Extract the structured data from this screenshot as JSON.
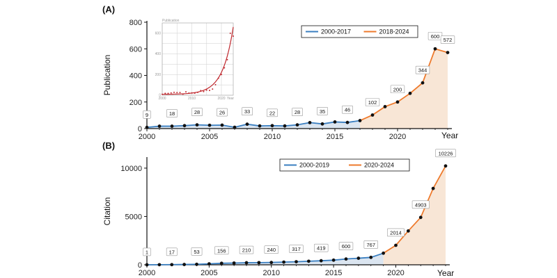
{
  "chart_data": [
    {
      "panel_label": "(A)",
      "type": "line",
      "ylabel": "Publication",
      "xlabel": "Year",
      "xlim": [
        2000,
        2024
      ],
      "ylim": [
        0,
        800
      ],
      "x_ticks": [
        2000,
        2005,
        2010,
        2015,
        2020
      ],
      "y_ticks": [
        0,
        200,
        400,
        600,
        800
      ],
      "legend_position": "top-right",
      "series": [
        {
          "name": "2000-2017",
          "color": "#3a7fc1",
          "fill": "#dbe5f0",
          "x": [
            2000,
            2001,
            2002,
            2003,
            2004,
            2005,
            2006,
            2007,
            2008,
            2009,
            2010,
            2011,
            2012,
            2013,
            2014,
            2015,
            2016,
            2017
          ],
          "values": [
            9,
            18,
            18,
            22,
            28,
            25,
            26,
            10,
            33,
            20,
            22,
            20,
            28,
            45,
            35,
            50,
            46,
            60
          ]
        },
        {
          "name": "2018-2024",
          "color": "#ee7a2c",
          "fill": "#f8e6d6",
          "x": [
            2017,
            2018,
            2019,
            2020,
            2021,
            2022,
            2023,
            2024
          ],
          "values": [
            60,
            102,
            165,
            200,
            265,
            344,
            600,
            572
          ]
        }
      ],
      "data_labels": [
        {
          "x": 2000,
          "text": "9"
        },
        {
          "x": 2002,
          "text": "18"
        },
        {
          "x": 2004,
          "text": "28"
        },
        {
          "x": 2006,
          "text": "26"
        },
        {
          "x": 2008,
          "text": "33"
        },
        {
          "x": 2010,
          "text": "22"
        },
        {
          "x": 2012,
          "text": "28"
        },
        {
          "x": 2014,
          "text": "35"
        },
        {
          "x": 2016,
          "text": "46"
        },
        {
          "x": 2018,
          "text": "102"
        },
        {
          "x": 2020,
          "text": "200"
        },
        {
          "x": 2022,
          "text": "344"
        },
        {
          "x": 2023,
          "text": "600"
        },
        {
          "x": 2024,
          "text": "572"
        }
      ],
      "inset": {
        "ylabel": "Publication",
        "xlabel": "Year",
        "y_ticks": [
          0,
          200,
          400,
          600
        ],
        "x_ticks": [
          2000,
          2010,
          2020
        ],
        "points": [
          [
            2000,
            9
          ],
          [
            2001,
            18
          ],
          [
            2002,
            18
          ],
          [
            2003,
            22
          ],
          [
            2004,
            28
          ],
          [
            2005,
            25
          ],
          [
            2006,
            26
          ],
          [
            2007,
            10
          ],
          [
            2008,
            33
          ],
          [
            2009,
            20
          ],
          [
            2010,
            22
          ],
          [
            2011,
            20
          ],
          [
            2012,
            28
          ],
          [
            2013,
            45
          ],
          [
            2014,
            35
          ],
          [
            2015,
            50
          ],
          [
            2016,
            46
          ],
          [
            2017,
            60
          ],
          [
            2018,
            102
          ],
          [
            2019,
            165
          ],
          [
            2020,
            200
          ],
          [
            2021,
            265
          ],
          [
            2022,
            344
          ],
          [
            2023,
            600
          ],
          [
            2024,
            572
          ]
        ],
        "fit_color": "#c0282e",
        "point_color": "#c0282e"
      }
    },
    {
      "panel_label": "(B)",
      "type": "line",
      "ylabel": "Citation",
      "xlabel": "Year",
      "xlim": [
        2000,
        2024
      ],
      "ylim": [
        0,
        11000
      ],
      "x_ticks": [
        2000,
        2005,
        2010,
        2015,
        2020
      ],
      "y_ticks": [
        0,
        5000,
        10000
      ],
      "legend_position": "top-right",
      "series": [
        {
          "name": "2000-2019",
          "color": "#3a7fc1",
          "fill": "#dbe5f0",
          "x": [
            2000,
            2001,
            2002,
            2003,
            2004,
            2005,
            2006,
            2007,
            2008,
            2009,
            2010,
            2011,
            2012,
            2013,
            2014,
            2015,
            2016,
            2017,
            2018,
            2019
          ],
          "values": [
            1,
            10,
            17,
            30,
            53,
            100,
            156,
            180,
            210,
            225,
            240,
            280,
            317,
            370,
            419,
            480,
            600,
            680,
            767,
            1200
          ]
        },
        {
          "name": "2020-2024",
          "color": "#ee7a2c",
          "fill": "#f8e6d6",
          "x": [
            2019,
            2020,
            2021,
            2022,
            2023,
            2024
          ],
          "values": [
            1200,
            2014,
            3500,
            4903,
            7900,
            10226
          ]
        }
      ],
      "data_labels": [
        {
          "x": 2000,
          "text": "1"
        },
        {
          "x": 2002,
          "text": "17"
        },
        {
          "x": 2004,
          "text": "53"
        },
        {
          "x": 2006,
          "text": "156"
        },
        {
          "x": 2008,
          "text": "210"
        },
        {
          "x": 2010,
          "text": "240"
        },
        {
          "x": 2012,
          "text": "317"
        },
        {
          "x": 2014,
          "text": "419"
        },
        {
          "x": 2016,
          "text": "600"
        },
        {
          "x": 2018,
          "text": "767"
        },
        {
          "x": 2020,
          "text": "2014"
        },
        {
          "x": 2022,
          "text": "4903"
        },
        {
          "x": 2024,
          "text": "10226"
        }
      ]
    }
  ]
}
